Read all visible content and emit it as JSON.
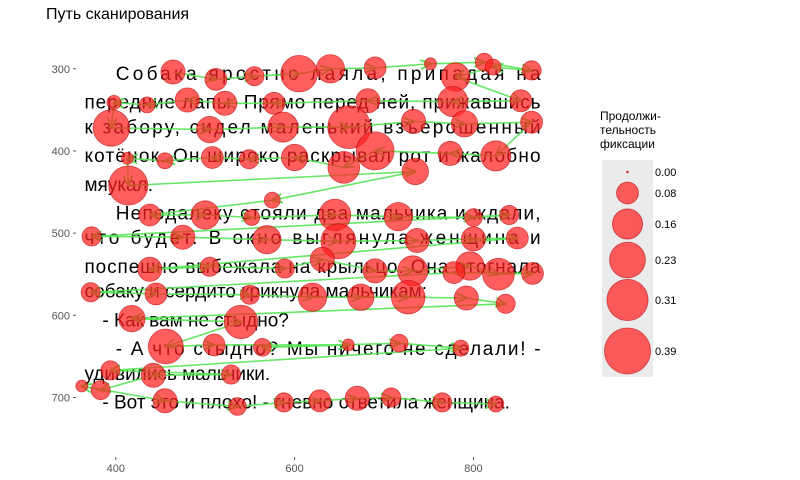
{
  "chart_data": {
    "type": "scatter",
    "title": "Путь сканирования",
    "xlabel": "",
    "ylabel": "",
    "xlim": [
      360,
      880
    ],
    "ylim": [
      770,
      265
    ],
    "y_reversed": true,
    "grid": false,
    "x_ticks": [
      400,
      600,
      800
    ],
    "y_ticks": [
      300,
      400,
      500,
      600,
      700
    ],
    "stimulus_text": [
      {
        "text": "Собака яростно лаяла, припадая на",
        "x_start": 400,
        "x_end": 875,
        "y": 305,
        "justify": true
      },
      {
        "text": "передние лапы. Прямо перед ней, прижавшись",
        "x_start": 365,
        "x_end": 875,
        "y": 340,
        "justify": true
      },
      {
        "text": "к забору, сидел маленький взъерошенный",
        "x_start": 365,
        "x_end": 875,
        "y": 370,
        "justify": true
      },
      {
        "text": "котёнок. Он широко раскрывал рот и жалобно",
        "x_start": 365,
        "x_end": 875,
        "y": 405,
        "justify": true
      },
      {
        "text": "мяукал.",
        "x_start": 365,
        "x_end": 460,
        "y": 440,
        "justify": false
      },
      {
        "text": "Неподалеку стояли два мальчика и ждали,",
        "x_start": 400,
        "x_end": 875,
        "y": 475,
        "justify": true
      },
      {
        "text": "что будет. В окно выглянула женщина и",
        "x_start": 365,
        "x_end": 875,
        "y": 505,
        "justify": true
      },
      {
        "text": "поспешно выбежала на крыльцо. Она отогнала",
        "x_start": 365,
        "x_end": 875,
        "y": 540,
        "justify": true
      },
      {
        "text": "собаку и сердито крикнула мальчикам:",
        "x_start": 365,
        "x_end": 800,
        "y": 570,
        "justify": false
      },
      {
        "text": "- Как вам не стыдно?",
        "x_start": 385,
        "x_end": 600,
        "y": 605,
        "justify": false
      },
      {
        "text": "- А что стыдно? Мы ничего не сделали! -",
        "x_start": 400,
        "x_end": 875,
        "y": 640,
        "justify": true
      },
      {
        "text": "удивились мальчики.",
        "x_start": 365,
        "x_end": 600,
        "y": 670,
        "justify": false
      },
      {
        "text": "- Вот это и плохо! - гневно ответила женщина.",
        "x_start": 385,
        "x_end": 875,
        "y": 705,
        "justify": false
      }
    ],
    "legend": {
      "title_lines": [
        "Продолжи-",
        "тельность",
        "фиксации"
      ],
      "placement": "right",
      "values": [
        0.0,
        0.08,
        0.16,
        0.23,
        0.31,
        0.39
      ],
      "labels": [
        "0.00",
        "0.08",
        "0.16",
        "0.23",
        "0.31",
        "0.39"
      ]
    },
    "colors": {
      "fixation_fill": "#ff2020",
      "fixation_stroke": "#b00000",
      "saccade": "#55e655",
      "legend_bg": "#ebebeb"
    },
    "fixations": [
      {
        "x": 464,
        "y": 304,
        "d": 0.1
      },
      {
        "x": 512,
        "y": 313,
        "d": 0.08
      },
      {
        "x": 555,
        "y": 309,
        "d": 0.06
      },
      {
        "x": 605,
        "y": 306,
        "d": 0.24
      },
      {
        "x": 640,
        "y": 300,
        "d": 0.14
      },
      {
        "x": 690,
        "y": 299,
        "d": 0.08
      },
      {
        "x": 752,
        "y": 294,
        "d": 0.02
      },
      {
        "x": 812,
        "y": 292,
        "d": 0.05
      },
      {
        "x": 865,
        "y": 302,
        "d": 0.06
      },
      {
        "x": 822,
        "y": 298,
        "d": 0.04
      },
      {
        "x": 780,
        "y": 310,
        "d": 0.14
      },
      {
        "x": 853,
        "y": 339,
        "d": 0.08
      },
      {
        "x": 777,
        "y": 340,
        "d": 0.16
      },
      {
        "x": 682,
        "y": 339,
        "d": 0.1
      },
      {
        "x": 577,
        "y": 342,
        "d": 0.08
      },
      {
        "x": 522,
        "y": 342,
        "d": 0.1
      },
      {
        "x": 480,
        "y": 338,
        "d": 0.1
      },
      {
        "x": 435,
        "y": 344,
        "d": 0.04
      },
      {
        "x": 398,
        "y": 341,
        "d": 0.03
      },
      {
        "x": 395,
        "y": 372,
        "d": 0.24
      },
      {
        "x": 505,
        "y": 374,
        "d": 0.12
      },
      {
        "x": 587,
        "y": 371,
        "d": 0.16
      },
      {
        "x": 661,
        "y": 371,
        "d": 0.34
      },
      {
        "x": 733,
        "y": 364,
        "d": 0.1
      },
      {
        "x": 790,
        "y": 367,
        "d": 0.12
      },
      {
        "x": 865,
        "y": 365,
        "d": 0.08
      },
      {
        "x": 825,
        "y": 406,
        "d": 0.16
      },
      {
        "x": 774,
        "y": 403,
        "d": 0.1
      },
      {
        "x": 690,
        "y": 400,
        "d": 0.26
      },
      {
        "x": 655,
        "y": 420,
        "d": 0.18
      },
      {
        "x": 600,
        "y": 408,
        "d": 0.12
      },
      {
        "x": 549,
        "y": 410,
        "d": 0.06
      },
      {
        "x": 508,
        "y": 408,
        "d": 0.08
      },
      {
        "x": 455,
        "y": 412,
        "d": 0.04
      },
      {
        "x": 413,
        "y": 409,
        "d": 0.02
      },
      {
        "x": 414,
        "y": 442,
        "d": 0.28
      },
      {
        "x": 735,
        "y": 425,
        "d": 0.12
      },
      {
        "x": 575,
        "y": 460,
        "d": 0.04
      },
      {
        "x": 438,
        "y": 478,
        "d": 0.08
      },
      {
        "x": 500,
        "y": 478,
        "d": 0.14
      },
      {
        "x": 552,
        "y": 481,
        "d": 0.04
      },
      {
        "x": 645,
        "y": 478,
        "d": 0.18
      },
      {
        "x": 716,
        "y": 480,
        "d": 0.14
      },
      {
        "x": 800,
        "y": 481,
        "d": 0.05
      },
      {
        "x": 840,
        "y": 478,
        "d": 0.06
      },
      {
        "x": 373,
        "y": 504,
        "d": 0.06
      },
      {
        "x": 475,
        "y": 505,
        "d": 0.1
      },
      {
        "x": 569,
        "y": 508,
        "d": 0.14
      },
      {
        "x": 649,
        "y": 510,
        "d": 0.22
      },
      {
        "x": 737,
        "y": 509,
        "d": 0.1
      },
      {
        "x": 800,
        "y": 507,
        "d": 0.1
      },
      {
        "x": 849,
        "y": 506,
        "d": 0.08
      },
      {
        "x": 438,
        "y": 544,
        "d": 0.1
      },
      {
        "x": 505,
        "y": 541,
        "d": 0.06
      },
      {
        "x": 589,
        "y": 543,
        "d": 0.06
      },
      {
        "x": 631,
        "y": 532,
        "d": 0.1
      },
      {
        "x": 690,
        "y": 546,
        "d": 0.1
      },
      {
        "x": 732,
        "y": 546,
        "d": 0.16
      },
      {
        "x": 796,
        "y": 540,
        "d": 0.14
      },
      {
        "x": 828,
        "y": 550,
        "d": 0.18
      },
      {
        "x": 866,
        "y": 549,
        "d": 0.08
      },
      {
        "x": 778,
        "y": 548,
        "d": 0.08
      },
      {
        "x": 372,
        "y": 572,
        "d": 0.06
      },
      {
        "x": 445,
        "y": 574,
        "d": 0.08
      },
      {
        "x": 550,
        "y": 575,
        "d": 0.06
      },
      {
        "x": 620,
        "y": 578,
        "d": 0.14
      },
      {
        "x": 674,
        "y": 578,
        "d": 0.12
      },
      {
        "x": 727,
        "y": 578,
        "d": 0.2
      },
      {
        "x": 792,
        "y": 579,
        "d": 0.1
      },
      {
        "x": 836,
        "y": 586,
        "d": 0.06
      },
      {
        "x": 418,
        "y": 604,
        "d": 0.12
      },
      {
        "x": 540,
        "y": 608,
        "d": 0.2
      },
      {
        "x": 456,
        "y": 638,
        "d": 0.22
      },
      {
        "x": 510,
        "y": 636,
        "d": 0.08
      },
      {
        "x": 660,
        "y": 636,
        "d": 0.02
      },
      {
        "x": 564,
        "y": 639,
        "d": 0.05
      },
      {
        "x": 717,
        "y": 634,
        "d": 0.05
      },
      {
        "x": 786,
        "y": 640,
        "d": 0.04
      },
      {
        "x": 394,
        "y": 667,
        "d": 0.06
      },
      {
        "x": 529,
        "y": 672,
        "d": 0.06
      },
      {
        "x": 442,
        "y": 673,
        "d": 0.1
      },
      {
        "x": 383,
        "y": 691,
        "d": 0.06
      },
      {
        "x": 362,
        "y": 686,
        "d": 0.02
      },
      {
        "x": 455,
        "y": 704,
        "d": 0.1
      },
      {
        "x": 536,
        "y": 711,
        "d": 0.05
      },
      {
        "x": 588,
        "y": 706,
        "d": 0.06
      },
      {
        "x": 628,
        "y": 704,
        "d": 0.08
      },
      {
        "x": 670,
        "y": 701,
        "d": 0.1
      },
      {
        "x": 708,
        "y": 700,
        "d": 0.06
      },
      {
        "x": 765,
        "y": 706,
        "d": 0.06
      },
      {
        "x": 825,
        "y": 708,
        "d": 0.04
      }
    ]
  }
}
